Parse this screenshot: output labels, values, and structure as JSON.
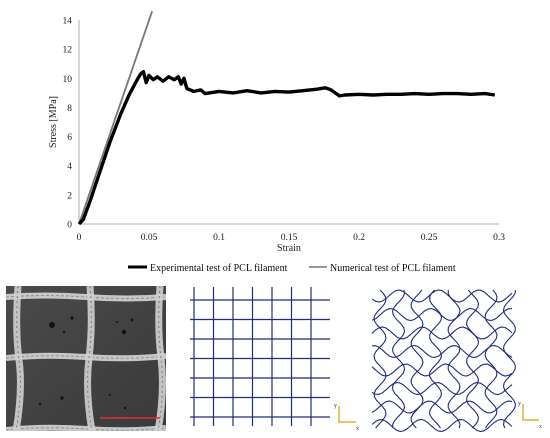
{
  "chart_data": {
    "type": "line",
    "xlabel": "Strain",
    "ylabel": "Stress [MPa]",
    "xlim": [
      0,
      0.3
    ],
    "ylim": [
      0,
      14
    ],
    "x_ticks": [
      "0",
      "0.05",
      "0.1",
      "0.15",
      "0.2",
      "0.25",
      "0.3"
    ],
    "y_ticks": [
      "0",
      "2",
      "4",
      "6",
      "8",
      "10",
      "12",
      "14"
    ],
    "grid": false,
    "legend": "bottom",
    "series": [
      {
        "name": "Experimental test of PCL filament",
        "color": "#000000",
        "points": [
          [
            0.0,
            0.0
          ],
          [
            0.003,
            0.3
          ],
          [
            0.008,
            1.6
          ],
          [
            0.015,
            3.6
          ],
          [
            0.022,
            5.6
          ],
          [
            0.03,
            7.6
          ],
          [
            0.036,
            8.9
          ],
          [
            0.041,
            9.8
          ],
          [
            0.044,
            10.3
          ],
          [
            0.046,
            10.45
          ],
          [
            0.048,
            9.7
          ],
          [
            0.05,
            10.2
          ],
          [
            0.053,
            9.9
          ],
          [
            0.056,
            10.1
          ],
          [
            0.06,
            9.8
          ],
          [
            0.064,
            10.1
          ],
          [
            0.068,
            9.9
          ],
          [
            0.071,
            10.1
          ],
          [
            0.073,
            9.6
          ],
          [
            0.075,
            10.0
          ],
          [
            0.077,
            9.3
          ],
          [
            0.082,
            9.1
          ],
          [
            0.087,
            9.2
          ],
          [
            0.09,
            8.95
          ],
          [
            0.1,
            9.1
          ],
          [
            0.11,
            9.0
          ],
          [
            0.12,
            9.15
          ],
          [
            0.13,
            9.0
          ],
          [
            0.14,
            9.1
          ],
          [
            0.15,
            9.05
          ],
          [
            0.16,
            9.15
          ],
          [
            0.17,
            9.25
          ],
          [
            0.176,
            9.35
          ],
          [
            0.18,
            9.2
          ],
          [
            0.183,
            9.0
          ],
          [
            0.186,
            8.8
          ],
          [
            0.19,
            8.85
          ],
          [
            0.2,
            8.9
          ],
          [
            0.21,
            8.85
          ],
          [
            0.22,
            8.9
          ],
          [
            0.23,
            8.9
          ],
          [
            0.24,
            8.95
          ],
          [
            0.25,
            8.9
          ],
          [
            0.26,
            8.95
          ],
          [
            0.27,
            8.95
          ],
          [
            0.28,
            8.9
          ],
          [
            0.29,
            8.95
          ],
          [
            0.297,
            8.85
          ]
        ]
      },
      {
        "name": "Numerical test of PCL filament",
        "color": "#777777",
        "points": [
          [
            0.0,
            0.0
          ],
          [
            0.0522,
            14.6
          ]
        ]
      }
    ]
  },
  "panels": {
    "sem_image": "SEM micrograph of printed grid scaffold",
    "straight_grid": {
      "color": "#1f2d7a",
      "axis_y": "y",
      "axis_x": "x",
      "axis_color": "#d9a400"
    },
    "wavy_grid": {
      "color": "#1f2d7a",
      "axis_y": "y",
      "axis_x": "x",
      "axis_color": "#d9a400"
    }
  }
}
